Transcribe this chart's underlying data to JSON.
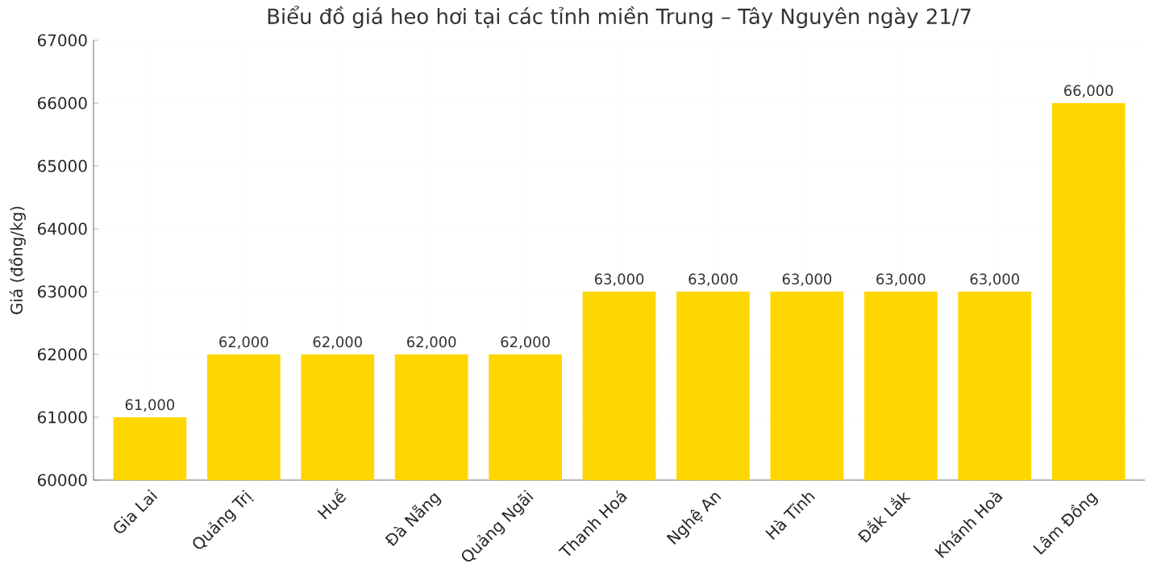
{
  "chart_data": {
    "type": "bar",
    "title": "Biểu đồ giá heo hơi tại các tỉnh miền Trung – Tây Nguyên ngày 21/7",
    "ylabel": "Giá (đồng/kg)",
    "categories": [
      "Gia Lai",
      "Quảng Trị",
      "Huế",
      "Đà Nẵng",
      "Quảng Ngãi",
      "Thanh Hoá",
      "Nghệ An",
      "Hà Tĩnh",
      "Đắk Lắk",
      "Khánh Hoà",
      "Lâm Đồng"
    ],
    "values": [
      61000,
      62000,
      62000,
      62000,
      62000,
      63000,
      63000,
      63000,
      63000,
      63000,
      66000
    ],
    "value_labels": [
      "61,000",
      "62,000",
      "62,000",
      "62,000",
      "62,000",
      "63,000",
      "63,000",
      "63,000",
      "63,000",
      "63,000",
      "66,000"
    ],
    "color": "#ffd700",
    "ylim": [
      60000,
      67000
    ],
    "yticks": [
      60000,
      61000,
      62000,
      63000,
      64000,
      65000,
      66000,
      67000
    ],
    "grid": true
  }
}
